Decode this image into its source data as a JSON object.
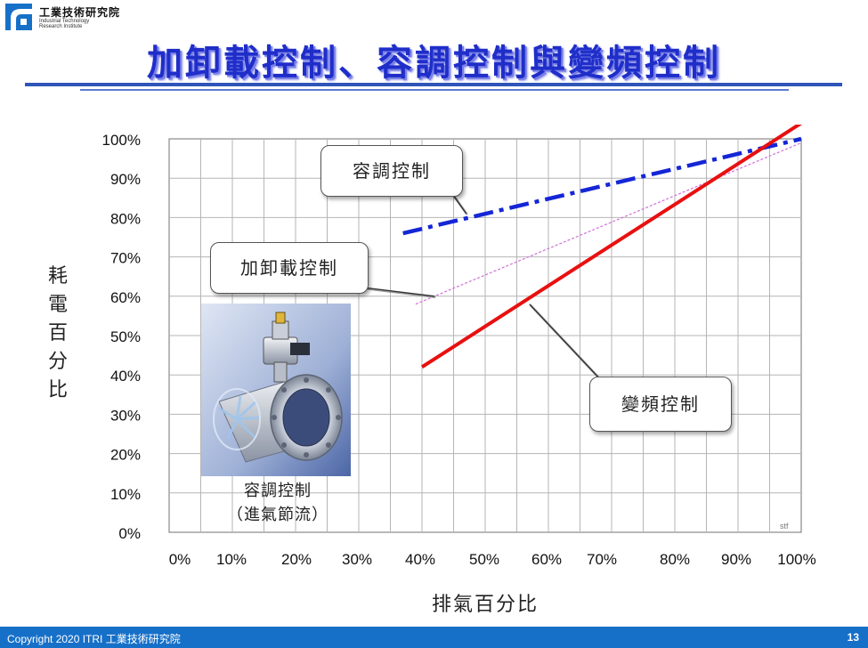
{
  "header": {
    "logo_zh": "工業技術研究院",
    "logo_en_line1": "Industrial Technology",
    "logo_en_line2": "Research Institute",
    "title": "加卸載控制、容調控制與變頻控制"
  },
  "chart_data": {
    "type": "line",
    "xlabel": "排氣百分比",
    "ylabel": "耗電百分比",
    "x_ticks": [
      "0%",
      "10%",
      "20%",
      "30%",
      "40%",
      "50%",
      "60%",
      "70%",
      "80%",
      "90%",
      "100%"
    ],
    "y_ticks": [
      "0%",
      "10%",
      "20%",
      "30%",
      "40%",
      "50%",
      "60%",
      "70%",
      "80%",
      "90%",
      "100%"
    ],
    "xlim": [
      0,
      100
    ],
    "ylim": [
      0,
      100
    ],
    "grid": true,
    "series": [
      {
        "name": "容調控制",
        "color": "#1426d6",
        "style": "dash-dot",
        "x": [
          37,
          100
        ],
        "y": [
          76,
          100
        ]
      },
      {
        "name": "加卸載控制",
        "color": "#d070d8",
        "style": "dotted",
        "x": [
          39,
          100
        ],
        "y": [
          58,
          99
        ]
      },
      {
        "name": "變頻控制",
        "color": "#e81010",
        "style": "solid",
        "x": [
          40,
          100
        ],
        "y": [
          42,
          104
        ]
      }
    ]
  },
  "callouts": {
    "volume": "容調控制",
    "loadunload": "加卸載控制",
    "vfd": "變頻控制"
  },
  "photo_caption": {
    "line1": "容調控制",
    "line2": "（進氣節流）"
  },
  "footer": {
    "copyright": "Copyright 2020  ITRI 工業技術研究院",
    "page": "13"
  },
  "signature": "stf"
}
